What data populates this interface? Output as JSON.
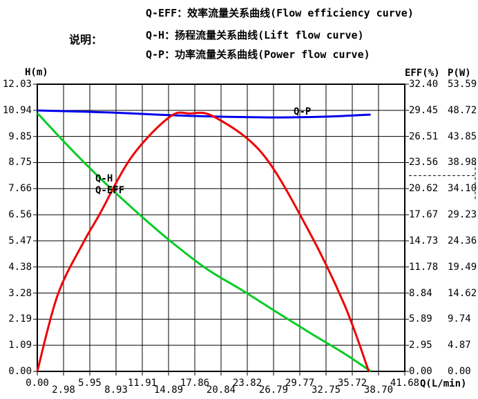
{
  "legend_panel": {
    "label": "说明：",
    "lines": [
      "Q-EFF：效率流量关系曲线(Flow efficiency curve)",
      "Q-H：扬程流量关系曲线(Lift flow curve)",
      "Q-P：功率流量关系曲线(Power flow curve)"
    ]
  },
  "chart_data": {
    "type": "line",
    "title": "",
    "grid": true,
    "legend_position": "top",
    "axes": {
      "x": {
        "label": "Q(L/min)",
        "range": [
          0,
          41.68
        ],
        "ticks": [
          "0.00",
          "2.98",
          "5.95",
          "8.93",
          "11.91",
          "14.89",
          "17.86",
          "20.84",
          "23.82",
          "26.79",
          "29.77",
          "32.75",
          "35.72",
          "38.70",
          "41.68"
        ]
      },
      "y_left": {
        "label": "H(m)",
        "range": [
          0,
          12.03
        ],
        "ticks": [
          "12.03",
          "10.94",
          "9.85",
          "8.75",
          "7.66",
          "6.56",
          "5.47",
          "4.38",
          "3.28",
          "2.19",
          "1.09",
          "0.00"
        ]
      },
      "y_right_eff": {
        "label": "EFF(%)",
        "range": [
          0,
          32.4
        ],
        "ticks": [
          "32.40",
          "29.45",
          "26.51",
          "23.56",
          "20.62",
          "17.67",
          "14.73",
          "11.78",
          "8.84",
          "5.89",
          "2.95",
          "0.00"
        ]
      },
      "y_right_power": {
        "label": "P(W)",
        "range": [
          0,
          53.59
        ],
        "ticks": [
          "53.59",
          "48.72",
          "43.85",
          "38.98",
          "34.10",
          "29.23",
          "24.36",
          "19.49",
          "14.62",
          "9.74",
          "4.87",
          "0.00"
        ]
      }
    },
    "series": [
      {
        "name": "Q-P",
        "axis": "power",
        "color": "#0000ee",
        "points": [
          [
            0,
            48.69
          ],
          [
            8.3,
            48.31
          ],
          [
            17.7,
            47.66
          ],
          [
            27.1,
            47.4
          ],
          [
            32.6,
            47.53
          ],
          [
            37.8,
            47.92
          ]
        ]
      },
      {
        "name": "Q-H",
        "axis": "lift",
        "color": "#00cc22",
        "points": [
          [
            0,
            10.82
          ],
          [
            3.6,
            9.4
          ],
          [
            7.52,
            7.95
          ],
          [
            11.44,
            6.62
          ],
          [
            15.36,
            5.38
          ],
          [
            19.27,
            4.28
          ],
          [
            23.19,
            3.41
          ],
          [
            27.11,
            2.49
          ],
          [
            31.03,
            1.59
          ],
          [
            34.94,
            0.72
          ],
          [
            37.84,
            0.0
          ]
        ]
      },
      {
        "name": "Q-EFF",
        "axis": "eff",
        "color": "#ee0000",
        "points": [
          [
            0,
            0
          ],
          [
            2.3,
            8.6
          ],
          [
            5.2,
            14.5
          ],
          [
            7.0,
            17.6
          ],
          [
            10.7,
            24.2
          ],
          [
            15.0,
            28.7
          ],
          [
            17.3,
            29.1
          ],
          [
            20.1,
            28.7
          ],
          [
            25.5,
            24.6
          ],
          [
            30.6,
            16.2
          ],
          [
            34.8,
            7.6
          ],
          [
            37.6,
            0
          ]
        ]
      }
    ],
    "annotations": [
      {
        "text": "Q-H",
        "q": 6.58,
        "axis": "lift",
        "v": 8.07
      },
      {
        "text": "Q-EFF",
        "q": 6.58,
        "axis": "lift",
        "v": 7.58
      },
      {
        "text": "Q-P",
        "q": 29.07,
        "axis": "power",
        "v": 48.44
      }
    ],
    "right_gutter_dashed_marker": {
      "between_rows": [
        3,
        4
      ]
    },
    "colors": {
      "grid": "#000000",
      "border": "#000000",
      "text": "#000000"
    }
  }
}
